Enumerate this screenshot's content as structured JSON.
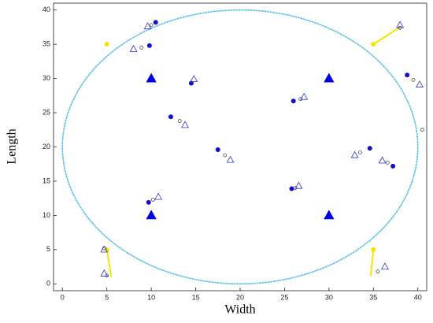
{
  "chart_data": {
    "type": "scatter",
    "x_label": "Width",
    "y_label": "Length",
    "xlim": [
      -1,
      41
    ],
    "ylim": [
      -1,
      41
    ],
    "xticks": [
      0,
      5,
      10,
      15,
      20,
      25,
      30,
      35,
      40
    ],
    "yticks": [
      0,
      5,
      10,
      15,
      20,
      25,
      30,
      35,
      40
    ],
    "curve": {
      "color": "#5bc0eb",
      "center": [
        20,
        20
      ],
      "radius": 20
    },
    "series": [
      {
        "marker": "line",
        "color": "#f2e600",
        "x": [
          35,
          38,
          null,
          5,
          5.5,
          null,
          35,
          34.7
        ],
        "values": [
          35,
          37.5,
          null,
          5,
          1,
          null,
          5,
          1.2
        ]
      },
      {
        "marker": "triangle",
        "color": "#0000e6",
        "x": [
          10,
          30,
          10,
          30
        ],
        "values": [
          30,
          30,
          10,
          10
        ]
      },
      {
        "marker": "dot",
        "color": "#f2e600",
        "x": [
          5,
          35,
          5,
          35
        ],
        "values": [
          35,
          35,
          5,
          5
        ]
      },
      {
        "marker": "dot",
        "color": "#1010d0",
        "x": [
          10.5,
          9.8,
          14.5,
          12.2,
          17.5,
          9.7,
          26,
          25.8,
          34.6,
          37.2,
          38.8
        ],
        "values": [
          38.2,
          34.8,
          29.3,
          24.4,
          19.6,
          11.9,
          26.7,
          13.9,
          19.8,
          17.2,
          30.5
        ]
      },
      {
        "marker": "open-circle",
        "color": "#333",
        "x": [
          10,
          8.9,
          13.2,
          18.3,
          10.2,
          26.8,
          26.2,
          33.5,
          36.6,
          39.5,
          38,
          40.5,
          4.7,
          5,
          35.5
        ],
        "values": [
          37.8,
          34.5,
          23.8,
          18.8,
          12.3,
          27,
          14,
          19.2,
          17.7,
          29.8,
          37.4,
          22.5,
          5.2,
          1.2,
          1.8
        ]
      },
      {
        "marker": "open-triangle",
        "color": "#3030d8",
        "x": [
          9.6,
          8,
          14.8,
          13.8,
          18.9,
          10.8,
          27.2,
          26.6,
          32.9,
          36,
          40.2,
          38,
          4.7,
          4.7,
          36.3
        ],
        "values": [
          37.6,
          34.3,
          29.9,
          23.2,
          18.1,
          12.7,
          27.3,
          14.3,
          18.8,
          18,
          29.1,
          37.8,
          5,
          1.5,
          2.5
        ]
      }
    ]
  }
}
